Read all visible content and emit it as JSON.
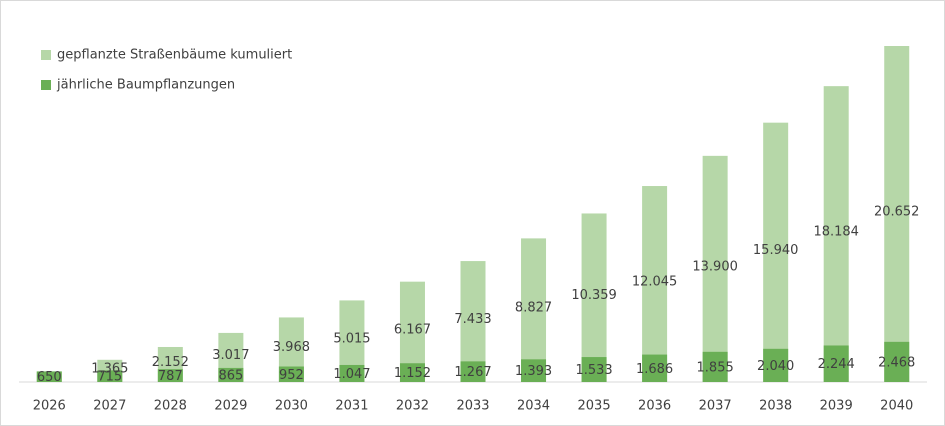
{
  "chart_data": {
    "type": "overlap-bar",
    "categories": [
      "2026",
      "2027",
      "2028",
      "2029",
      "2030",
      "2031",
      "2032",
      "2033",
      "2034",
      "2035",
      "2036",
      "2037",
      "2038",
      "2039",
      "2040"
    ],
    "series": [
      {
        "name": "gepflanzte Straßenbäume kumuliert",
        "color": "#b6d7a8",
        "values": [
          650,
          1365,
          2152,
          3017,
          3968,
          5015,
          6167,
          7433,
          8827,
          10359,
          12045,
          13900,
          15940,
          18184,
          20652
        ],
        "value_labels": [
          null,
          "1.365",
          "2.152",
          "3.017",
          "3.968",
          "5.015",
          "6.167",
          "7.433",
          "8.827",
          "10.359",
          "12.045",
          "13.900",
          "15.940",
          "18.184",
          "20.652"
        ]
      },
      {
        "name": "jährliche Baumpflanzungen",
        "color": "#6aaf55",
        "values": [
          650,
          715,
          787,
          865,
          952,
          1047,
          1152,
          1267,
          1393,
          1533,
          1686,
          1855,
          2040,
          2244,
          2468
        ],
        "value_labels": [
          "650",
          "715",
          "787",
          "865",
          "952",
          "1.047",
          "1.152",
          "1.267",
          "1.393",
          "1.533",
          "1.686",
          "1.855",
          "2.040",
          "2.244",
          "2.468"
        ]
      }
    ],
    "legend": "top-left"
  }
}
